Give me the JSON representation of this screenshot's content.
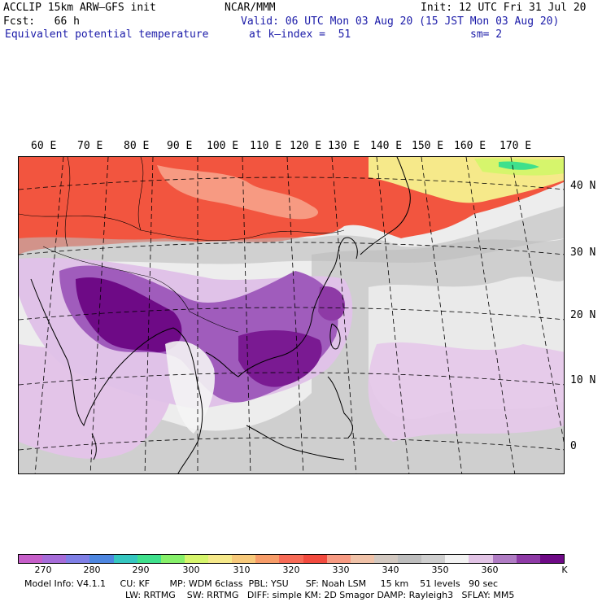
{
  "header": {
    "model_line": "ACCLIP 15km ARW–GFS init",
    "forecast_line": "Fcst:   66 h",
    "variable_line": "Equivalent potential temperature",
    "center_line": "NCAR/MMM",
    "init_line": "Init: 12 UTC Fri 31 Jul 20",
    "valid_line": "Valid: 06 UTC Mon 03 Aug 20 (15 JST Mon 03 Aug 20)",
    "level_line": "at k–index =  51",
    "smooth_line": "sm= 2"
  },
  "map": {
    "longitude_labels": [
      "60 E",
      "70 E",
      "80 E",
      "90 E",
      "100 E",
      "110 E",
      "120 E",
      "130 E",
      "140 E",
      "150 E",
      "160 E",
      "170 E"
    ],
    "latitude_labels": [
      "40 N",
      "30 N",
      "20 N",
      "10 N",
      "0"
    ]
  },
  "colorbar": {
    "colors": [
      "#c65ec9",
      "#a66cd9",
      "#7f7fe6",
      "#4d86e0",
      "#35c6c0",
      "#3fe08c",
      "#86f06a",
      "#d6f56c",
      "#f6e98a",
      "#f7c97a",
      "#f79c68",
      "#f76a56",
      "#f24a3e",
      "#f79a82",
      "#f0c2a8",
      "#d2c8c0",
      "#bdbdbd",
      "#cfcfcf",
      "#f2f2f2",
      "#e2c4e6",
      "#b07cc4",
      "#8e3aa6",
      "#6e0a86"
    ],
    "tick_labels": [
      "270",
      "280",
      "290",
      "300",
      "310",
      "320",
      "330",
      "340",
      "350",
      "360"
    ],
    "unit": "K"
  },
  "footer": {
    "line1": "Model Info: V4.1.1     CU: KF       MP: WDM 6class  PBL: YSU      SF: Noah LSM     15 km    51 levels   90 sec",
    "line2": "LW: RRTMG    SW: RRTMG   DIFF: simple KM: 2D Smagor DAMP: Rayleigh3   SFLAY: MM5"
  }
}
